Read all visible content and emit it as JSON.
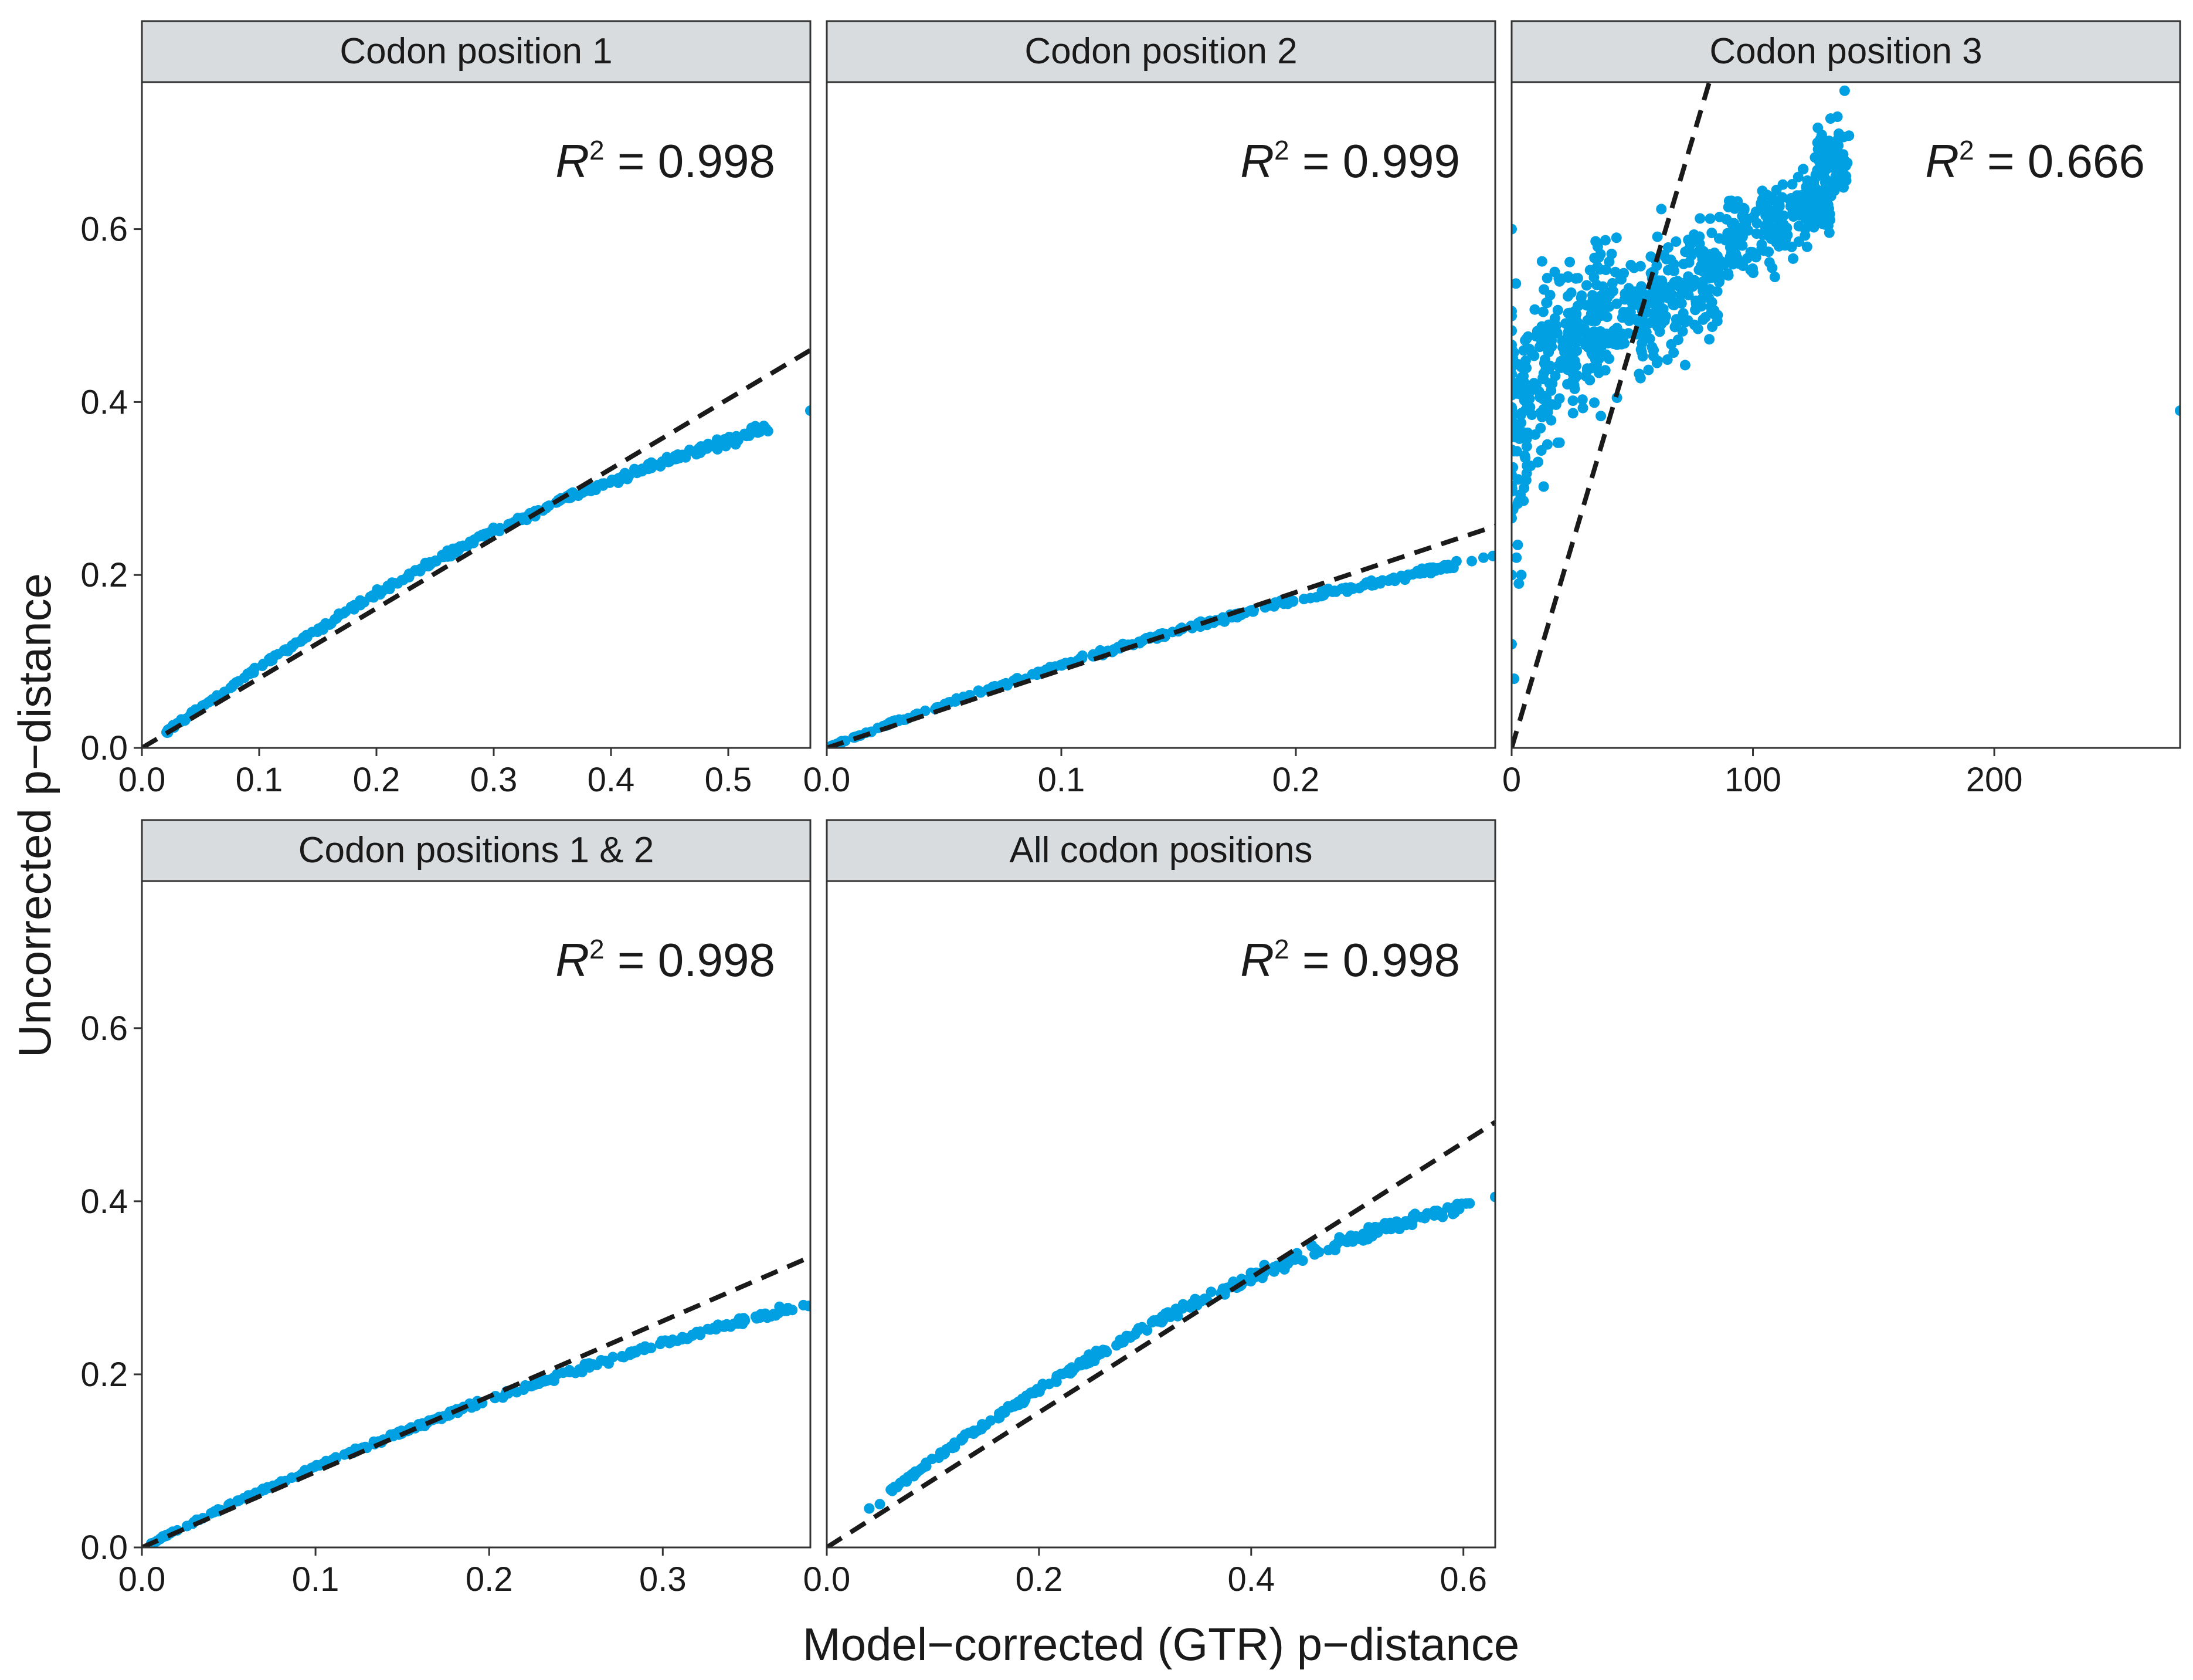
{
  "chart_data": {
    "type": "scatter",
    "xlabel": "Model−corrected (GTR) p−distance",
    "ylabel": "Uncorrected p−distance",
    "point_color": "#00a0e3",
    "line_color": "#1a1a1a",
    "strip_color": "#d9dcde",
    "ylim": [
      0,
      0.77
    ],
    "y_ticks": [
      {
        "value": 0.0,
        "label": "0.0"
      },
      {
        "value": 0.2,
        "label": "0.2"
      },
      {
        "value": 0.4,
        "label": "0.4"
      },
      {
        "value": 0.6,
        "label": "0.6"
      }
    ],
    "panels": [
      {
        "title": "Codon position 1",
        "r2_label": "R",
        "r2_sup": "2",
        "r2_value": " = 0.998",
        "xlim": [
          0,
          0.57
        ],
        "x_ticks": [
          {
            "value": 0.0,
            "label": "0.0"
          },
          {
            "value": 0.1,
            "label": "0.1"
          },
          {
            "value": 0.2,
            "label": "0.2"
          },
          {
            "value": 0.3,
            "label": "0.3"
          },
          {
            "value": 0.4,
            "label": "0.4"
          },
          {
            "value": 0.5,
            "label": "0.5"
          }
        ],
        "fit_line": {
          "slope": 0.807,
          "intercept": 0
        },
        "curve": [
          [
            0.02,
            0.018
          ],
          [
            0.05,
            0.047
          ],
          [
            0.1,
            0.093
          ],
          [
            0.15,
            0.137
          ],
          [
            0.2,
            0.178
          ],
          [
            0.25,
            0.216
          ],
          [
            0.3,
            0.251
          ],
          [
            0.35,
            0.282
          ],
          [
            0.4,
            0.31
          ],
          [
            0.45,
            0.334
          ],
          [
            0.5,
            0.356
          ],
          [
            0.535,
            0.37
          ]
        ],
        "spread": 0.004,
        "n_points": 320,
        "outliers": [
          [
            0.57,
            0.39
          ]
        ]
      },
      {
        "title": "Codon position 2",
        "r2_label": "R",
        "r2_sup": "2",
        "r2_value": " = 0.999",
        "xlim": [
          0,
          0.285
        ],
        "x_ticks": [
          {
            "value": 0.0,
            "label": "0.0"
          },
          {
            "value": 0.1,
            "label": "0.1"
          },
          {
            "value": 0.2,
            "label": "0.2"
          }
        ],
        "fit_line": {
          "slope": 0.9,
          "intercept": 0
        },
        "curve": [
          [
            0.002,
            0.002
          ],
          [
            0.02,
            0.021
          ],
          [
            0.05,
            0.05
          ],
          [
            0.1,
            0.096
          ],
          [
            0.15,
            0.136
          ],
          [
            0.2,
            0.171
          ],
          [
            0.25,
            0.201
          ],
          [
            0.27,
            0.213
          ]
        ],
        "spread": 0.003,
        "n_points": 260,
        "outliers": [
          [
            0.275,
            0.216
          ],
          [
            0.28,
            0.22
          ],
          [
            0.284,
            0.222
          ]
        ]
      },
      {
        "title": "Codon position 3",
        "r2_label": "R",
        "r2_sup": "2",
        "r2_value": " = 0.666",
        "xlim": [
          0,
          277
        ],
        "x_ticks": [
          {
            "value": 0,
            "label": "0"
          },
          {
            "value": 100,
            "label": "100"
          },
          {
            "value": 200,
            "label": "200"
          }
        ],
        "fit_line": {
          "slope": 0.0094,
          "intercept": 0
        },
        "cloud": [
          [
            0,
            0.38,
            0.12
          ],
          [
            10,
            0.42,
            0.1
          ],
          [
            20,
            0.46,
            0.09
          ],
          [
            30,
            0.48,
            0.08
          ],
          [
            40,
            0.5,
            0.08
          ],
          [
            55,
            0.5,
            0.07
          ],
          [
            65,
            0.52,
            0.07
          ],
          [
            80,
            0.55,
            0.06
          ],
          [
            95,
            0.59,
            0.05
          ],
          [
            110,
            0.61,
            0.05
          ],
          [
            125,
            0.63,
            0.04
          ],
          [
            133,
            0.68,
            0.04
          ]
        ],
        "n_points": 900,
        "outliers": [
          [
            0,
            0.6
          ],
          [
            0,
            0.12
          ],
          [
            0,
            0.2
          ],
          [
            1,
            0.08
          ],
          [
            2,
            0.22
          ],
          [
            3,
            0.19
          ],
          [
            4,
            0.2
          ],
          [
            135,
            0.73
          ],
          [
            138,
            0.76
          ],
          [
            277,
            0.39
          ]
        ]
      },
      {
        "title": "Codon positions 1 & 2",
        "r2_label": "R",
        "r2_sup": "2",
        "r2_value": " = 0.998",
        "xlim": [
          0,
          0.385
        ],
        "x_ticks": [
          {
            "value": 0.0,
            "label": "0.0"
          },
          {
            "value": 0.1,
            "label": "0.1"
          },
          {
            "value": 0.2,
            "label": "0.2"
          },
          {
            "value": 0.3,
            "label": "0.3"
          }
        ],
        "fit_line": {
          "slope": 0.872,
          "intercept": 0
        },
        "curve": [
          [
            0.005,
            0.005
          ],
          [
            0.05,
            0.049
          ],
          [
            0.1,
            0.093
          ],
          [
            0.15,
            0.134
          ],
          [
            0.2,
            0.171
          ],
          [
            0.25,
            0.205
          ],
          [
            0.3,
            0.236
          ],
          [
            0.35,
            0.264
          ],
          [
            0.375,
            0.277
          ]
        ],
        "spread": 0.003,
        "n_points": 280,
        "outliers": [
          [
            0.381,
            0.28
          ],
          [
            0.384,
            0.279
          ]
        ]
      },
      {
        "title": "All codon positions",
        "r2_label": "R",
        "r2_sup": "2",
        "r2_value": " = 0.998",
        "xlim": [
          0,
          0.63
        ],
        "x_ticks": [
          {
            "value": 0.0,
            "label": "0.0"
          },
          {
            "value": 0.2,
            "label": "0.2"
          },
          {
            "value": 0.4,
            "label": "0.4"
          },
          {
            "value": 0.6,
            "label": "0.6"
          }
        ],
        "fit_line": {
          "slope": 0.78,
          "intercept": 0
        },
        "curve": [
          [
            0.06,
            0.065
          ],
          [
            0.1,
            0.101
          ],
          [
            0.15,
            0.143
          ],
          [
            0.2,
            0.183
          ],
          [
            0.25,
            0.22
          ],
          [
            0.3,
            0.254
          ],
          [
            0.35,
            0.285
          ],
          [
            0.4,
            0.312
          ],
          [
            0.45,
            0.337
          ],
          [
            0.5,
            0.359
          ],
          [
            0.55,
            0.378
          ],
          [
            0.6,
            0.395
          ],
          [
            0.61,
            0.398
          ]
        ],
        "spread": 0.005,
        "n_points": 320,
        "outliers": [
          [
            0.04,
            0.045
          ],
          [
            0.05,
            0.05
          ],
          [
            0.63,
            0.405
          ]
        ]
      }
    ]
  }
}
